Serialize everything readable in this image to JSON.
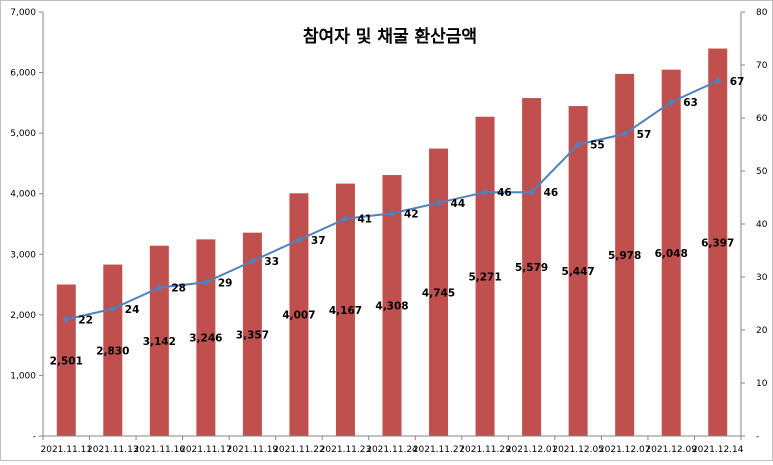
{
  "chart_data": {
    "type": "bar",
    "title": "참여자 및 채굴 환산금액",
    "categories": [
      "2021.11.11",
      "2021.11.13",
      "2021.11.16",
      "2021.11.17",
      "2021.11.19",
      "2021.11.22",
      "2021.11.23",
      "2021.11.24",
      "2021.11.27",
      "2021.11.29",
      "2021.12.01",
      "2021.12.05",
      "2021.12.07",
      "2021.12.09",
      "2021.12.14"
    ],
    "series": [
      {
        "type": "bar",
        "axis": "left",
        "color": "#c0504d",
        "values": [
          2501,
          2830,
          3142,
          3246,
          3357,
          4007,
          4167,
          4308,
          4745,
          5271,
          5579,
          5447,
          5978,
          6048,
          6397
        ],
        "labels": [
          "2,501",
          "2,830",
          "3,142",
          "3,246",
          "3,357",
          "4,007",
          "4,167",
          "4,308",
          "4,745",
          "5,271",
          "5,579",
          "5,447",
          "5,978",
          "6,048",
          "6,397"
        ]
      },
      {
        "type": "line",
        "axis": "right",
        "color": "#4f81bd",
        "values": [
          22,
          24,
          28,
          29,
          33,
          37,
          41,
          42,
          44,
          46,
          46,
          55,
          57,
          63,
          67
        ],
        "labels": [
          "22",
          "24",
          "28",
          "29",
          "33",
          "37",
          "41",
          "42",
          "44",
          "46",
          "46",
          "55",
          "57",
          "63",
          "67"
        ]
      }
    ],
    "left_axis": {
      "ylim": [
        0,
        7000
      ],
      "ticks": [
        0,
        1000,
        2000,
        3000,
        4000,
        5000,
        6000,
        7000
      ],
      "tick_labels": [
        "-",
        "1,000",
        "2,000",
        "3,000",
        "4,000",
        "5,000",
        "6,000",
        "7,000"
      ]
    },
    "right_axis": {
      "ylim": [
        0,
        80
      ],
      "ticks": [
        0,
        10,
        20,
        30,
        40,
        50,
        60,
        70,
        80
      ],
      "tick_labels": [
        "-",
        "10",
        "20",
        "30",
        "40",
        "50",
        "60",
        "70",
        "80"
      ]
    },
    "grid": false,
    "legend": "none"
  }
}
